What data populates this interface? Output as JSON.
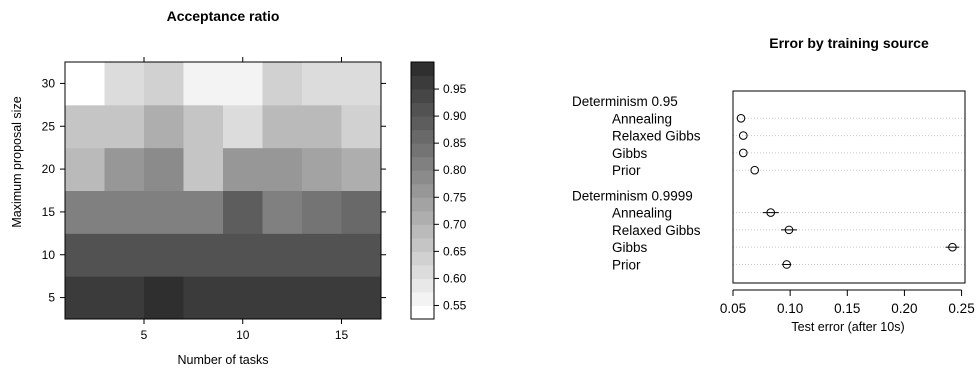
{
  "chart_data": [
    {
      "type": "heatmap",
      "title": "Acceptance ratio",
      "xlabel": "Number of tasks",
      "ylabel": "Maximum proposal size",
      "x_ticks": [
        5,
        10,
        15
      ],
      "y_ticks": [
        5,
        10,
        15,
        20,
        25,
        30
      ],
      "xlim": [
        1,
        17
      ],
      "ylim": [
        2.5,
        32.5
      ],
      "x_cells": [
        2,
        4,
        6,
        8,
        10,
        12,
        14,
        16
      ],
      "y_cells": [
        5,
        10,
        15,
        20,
        25,
        30
      ],
      "values": [
        [
          0.97,
          0.97,
          0.985,
          0.97,
          0.97,
          0.97,
          0.97,
          0.97
        ],
        [
          0.91,
          0.91,
          0.91,
          0.91,
          0.91,
          0.91,
          0.91,
          0.91
        ],
        [
          0.81,
          0.81,
          0.81,
          0.81,
          0.89,
          0.8,
          0.83,
          0.87
        ],
        [
          0.7,
          0.76,
          0.78,
          0.65,
          0.75,
          0.77,
          0.73,
          0.71
        ],
        [
          0.65,
          0.65,
          0.71,
          0.67,
          0.61,
          0.7,
          0.7,
          0.63
        ],
        [
          0.54,
          0.62,
          0.64,
          0.57,
          0.57,
          0.63,
          0.61,
          0.61
        ]
      ],
      "colorbar": {
        "ticks": [
          0.55,
          0.6,
          0.65,
          0.7,
          0.75,
          0.8,
          0.85,
          0.9,
          0.95
        ],
        "tick_labels": [
          "0.55",
          "0.60",
          "0.65",
          "0.70",
          "0.75",
          "0.80",
          "0.85",
          "0.90",
          "0.95"
        ],
        "range": [
          0.525,
          1.0
        ],
        "levels": 19,
        "color_low": "#ffffff",
        "color_high": "#2f2f2f"
      }
    },
    {
      "type": "scatter",
      "title": "Error by training source",
      "xlabel": "Test error (after 10s)",
      "x_ticks": [
        0.05,
        0.1,
        0.15,
        0.2,
        0.25
      ],
      "x_tick_labels": [
        "0.05",
        "0.10",
        "0.15",
        "0.20",
        "0.25"
      ],
      "xlim": [
        0.05,
        0.253
      ],
      "grid": "dotted horizontal",
      "groups": [
        {
          "label": "Determinism 0.95",
          "rows": [
            {
              "label": "Annealing",
              "value": 0.057,
              "err_low": 0.057,
              "err_high": 0.057
            },
            {
              "label": "Relaxed Gibbs",
              "value": 0.059,
              "err_low": 0.059,
              "err_high": 0.059
            },
            {
              "label": "Gibbs",
              "value": 0.059,
              "err_low": 0.059,
              "err_high": 0.059
            },
            {
              "label": "Prior",
              "value": 0.069,
              "err_low": 0.069,
              "err_high": 0.069
            }
          ]
        },
        {
          "label": "Determinism 0.9999",
          "rows": [
            {
              "label": "Annealing",
              "value": 0.083,
              "err_low": 0.076,
              "err_high": 0.09
            },
            {
              "label": "Relaxed Gibbs",
              "value": 0.099,
              "err_low": 0.092,
              "err_high": 0.106
            },
            {
              "label": "Gibbs",
              "value": 0.242,
              "err_low": 0.236,
              "err_high": 0.248
            },
            {
              "label": "Prior",
              "value": 0.097,
              "err_low": 0.093,
              "err_high": 0.101
            }
          ]
        }
      ]
    }
  ]
}
